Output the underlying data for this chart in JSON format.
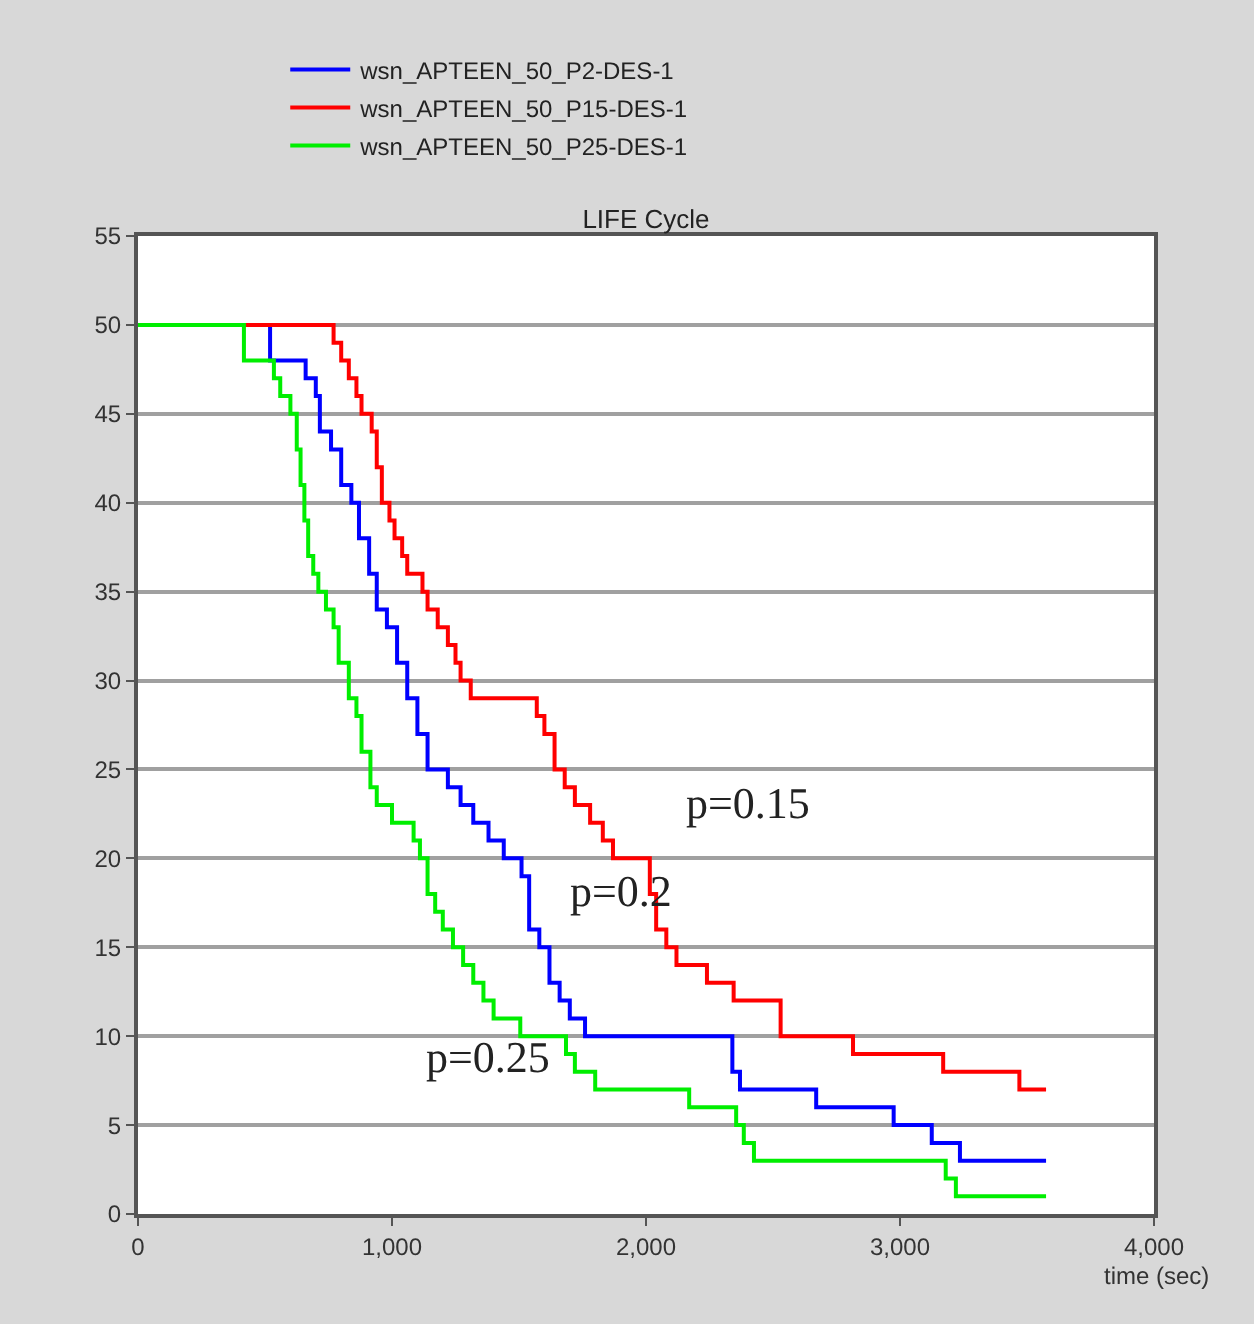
{
  "chart_data": {
    "type": "step",
    "title": "LIFE Cycle",
    "xlabel": "time (sec)",
    "xlim": [
      0,
      4000
    ],
    "xticks": [
      0,
      {
        "value": 1000,
        "label": "1,000"
      },
      {
        "value": 2000,
        "label": "2,000"
      },
      {
        "value": 3000,
        "label": "3,000"
      },
      {
        "value": 4000,
        "label": "4,000"
      }
    ],
    "ylim": [
      0,
      55
    ],
    "yticks": [
      0,
      5,
      10,
      15,
      20,
      25,
      30,
      35,
      40,
      45,
      50,
      55
    ],
    "grid": "y",
    "legend": "top left",
    "line_style": "solid",
    "marker": "none",
    "series": [
      {
        "name": "wsn_APTEEN_50_P2-DES-1",
        "color": "#0000ff",
        "x": [
          0,
          520,
          660,
          700,
          716,
          760,
          800,
          840,
          870,
          910,
          940,
          980,
          1020,
          1060,
          1100,
          1140,
          1220,
          1270,
          1320,
          1380,
          1440,
          1510,
          1540,
          1580,
          1620,
          1660,
          1700,
          1760,
          2340,
          2370,
          2670,
          2975,
          3125,
          3236,
          3575
        ],
        "values": [
          50,
          48,
          47,
          46,
          44,
          43,
          41,
          40,
          38,
          36,
          34,
          33,
          31,
          29,
          27,
          25,
          24,
          23,
          22,
          21,
          20,
          19,
          16,
          15,
          13,
          12,
          11,
          10,
          8,
          7,
          6,
          5,
          4,
          3,
          3
        ]
      },
      {
        "name": "wsn_APTEEN_50_P15-DES-1",
        "color": "#ff0000",
        "x": [
          0,
          770,
          800,
          830,
          860,
          880,
          920,
          940,
          960,
          990,
          1010,
          1040,
          1060,
          1120,
          1140,
          1180,
          1220,
          1250,
          1270,
          1310,
          1570,
          1600,
          1640,
          1680,
          1720,
          1780,
          1830,
          1870,
          2015,
          2040,
          2080,
          2120,
          2240,
          2345,
          2530,
          2815,
          3170,
          3470,
          3575
        ],
        "values": [
          50,
          49,
          48,
          47,
          46,
          45,
          44,
          42,
          40,
          39,
          38,
          37,
          36,
          35,
          34,
          33,
          32,
          31,
          30,
          29,
          28,
          27,
          25,
          24,
          23,
          22,
          21,
          20,
          18,
          16,
          15,
          14,
          13,
          12,
          10,
          9,
          8,
          7,
          7
        ]
      },
      {
        "name": "wsn_APTEEN_50_P25-DES-1",
        "color": "#00ee00",
        "x": [
          0,
          417,
          535,
          560,
          600,
          625,
          640,
          655,
          670,
          690,
          710,
          740,
          770,
          790,
          830,
          860,
          880,
          915,
          940,
          1000,
          1085,
          1110,
          1140,
          1170,
          1200,
          1240,
          1280,
          1320,
          1360,
          1400,
          1505,
          1685,
          1720,
          1800,
          2170,
          2355,
          2385,
          2425,
          3180,
          3220,
          3575
        ],
        "values": [
          50,
          48,
          47,
          46,
          45,
          43,
          41,
          39,
          37,
          36,
          35,
          34,
          33,
          31,
          29,
          28,
          26,
          24,
          23,
          22,
          21,
          20,
          18,
          17,
          16,
          15,
          14,
          13,
          12,
          11,
          10,
          9,
          8,
          7,
          6,
          5,
          4,
          3,
          2,
          1,
          1
        ]
      }
    ],
    "annotations": [
      "p=0.15",
      "p=0.2",
      "p=0.25"
    ]
  }
}
